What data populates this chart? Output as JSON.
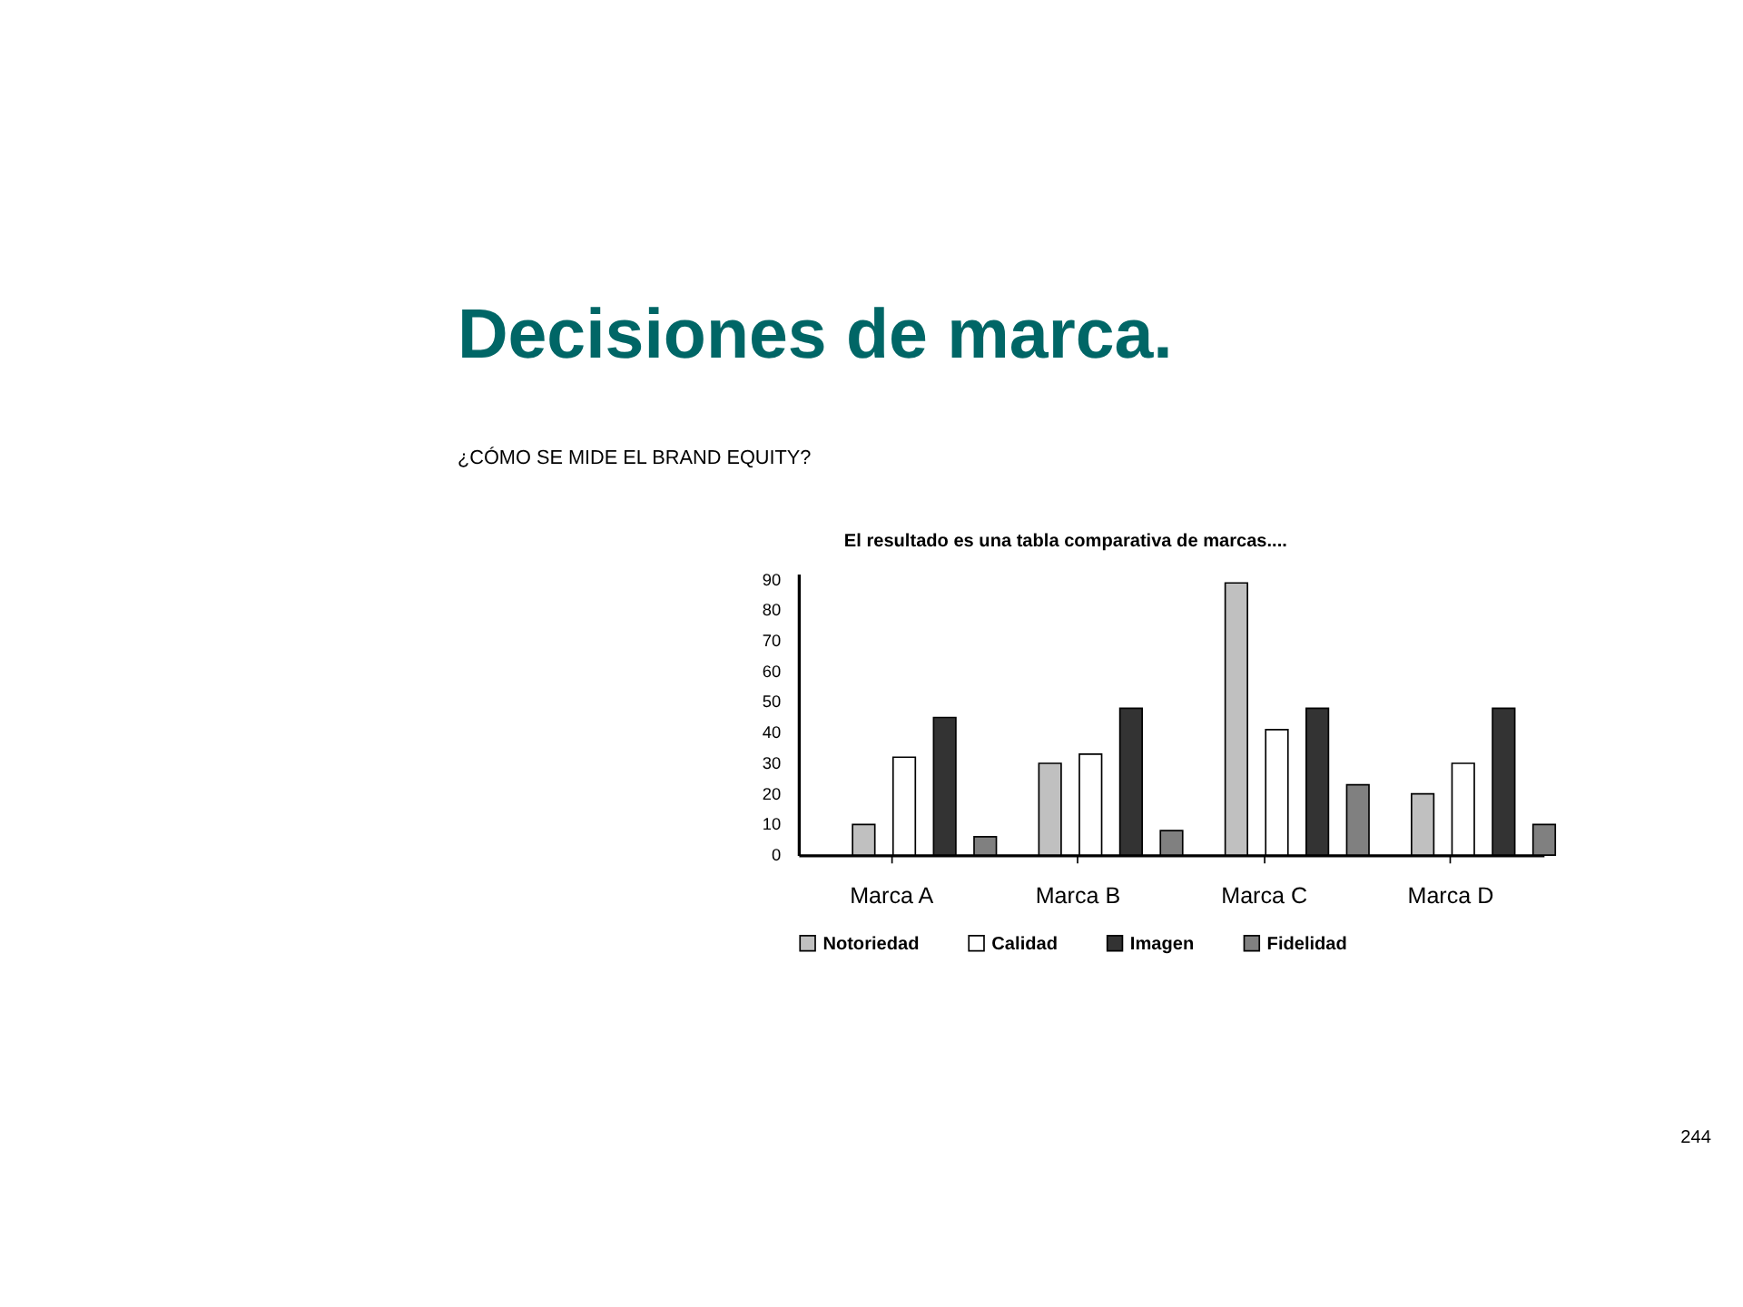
{
  "chart_data": {
    "type": "bar",
    "title": "Decisiones de marca.",
    "subtitle": "¿CÓMO SE MIDE EL BRAND EQUITY?",
    "annotations": [
      "El resultado es una tabla comparativa de marcas....",
      "244"
    ],
    "categories": [
      "Marca A",
      "Marca B",
      "Marca C",
      "Marca D"
    ],
    "series": [
      {
        "name": "Notoriedad",
        "color": "#c0c0c0",
        "values": [
          10,
          30,
          89,
          20
        ]
      },
      {
        "name": "Calidad",
        "color": "#ffffff",
        "values": [
          32,
          33,
          41,
          30
        ]
      },
      {
        "name": "Imagen",
        "color": "#333333",
        "values": [
          45,
          48,
          48,
          48
        ]
      },
      {
        "name": "Fidelidad",
        "color": "#808080",
        "values": [
          6,
          8,
          23,
          10
        ]
      }
    ],
    "ylim": [
      0,
      92
    ],
    "yticks": [
      0,
      10,
      20,
      30,
      40,
      50,
      60,
      70,
      80,
      90
    ],
    "grid": false,
    "legend": "bottom"
  }
}
